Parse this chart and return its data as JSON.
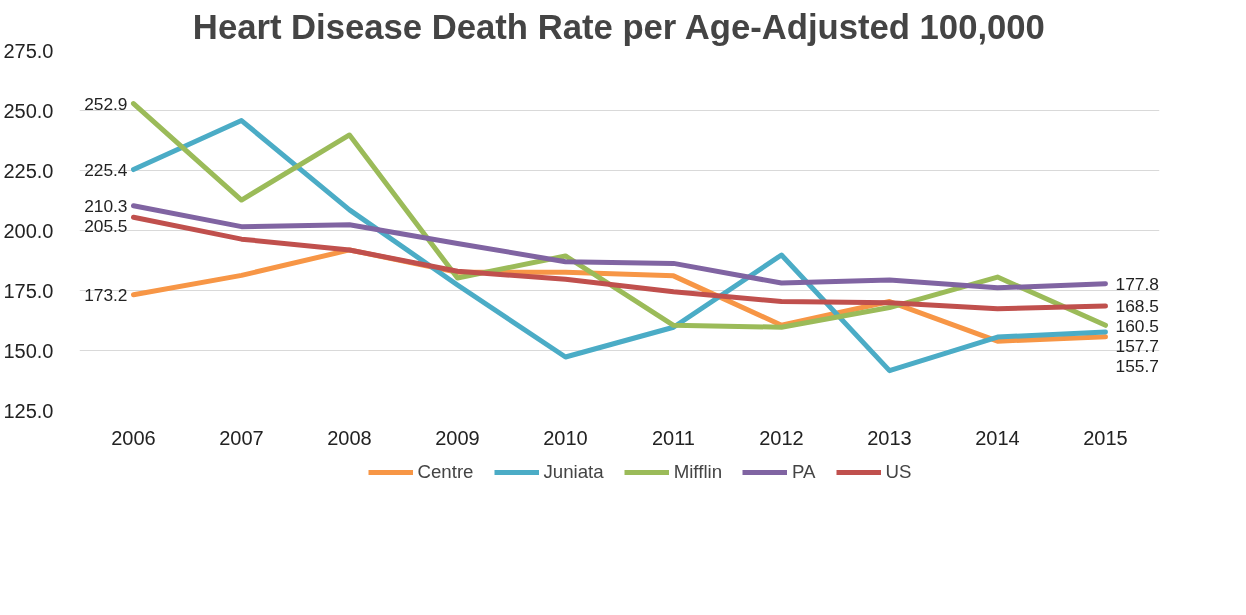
{
  "chart_data": {
    "type": "line",
    "title": "Heart Disease Death Rate per Age-Adjusted 100,000",
    "categories": [
      "2006",
      "2007",
      "2008",
      "2009",
      "2010",
      "2011",
      "2012",
      "2013",
      "2014",
      "2015"
    ],
    "series": [
      {
        "name": "Centre",
        "color": "#f79646",
        "values": [
          173.2,
          181.3,
          191.9,
          182.6,
          182.6,
          181.1,
          160.5,
          170.4,
          153.9,
          155.7
        ],
        "value_labels": [
          "173.2",
          null,
          null,
          null,
          null,
          null,
          null,
          null,
          null,
          "155.7"
        ]
      },
      {
        "name": "Juniata",
        "color": "#4bacc6",
        "values": [
          225.4,
          245.8,
          208.6,
          177.3,
          147.3,
          159.7,
          189.8,
          141.6,
          155.6,
          157.7
        ],
        "value_labels": [
          "225.4",
          null,
          null,
          null,
          null,
          null,
          null,
          null,
          null,
          "157.7"
        ]
      },
      {
        "name": "Mifflin",
        "color": "#9bbb59",
        "values": [
          252.9,
          212.7,
          239.8,
          180.2,
          189.4,
          160.5,
          159.7,
          167.9,
          180.6,
          160.5
        ],
        "value_labels": [
          "252.9",
          null,
          null,
          null,
          null,
          null,
          null,
          null,
          null,
          "160.5"
        ]
      },
      {
        "name": "PA",
        "color": "#8064a2",
        "values": [
          210.3,
          201.6,
          202.4,
          194.6,
          187.0,
          186.3,
          178.1,
          179.4,
          176.1,
          177.8
        ],
        "value_labels": [
          "210.3",
          null,
          null,
          null,
          null,
          null,
          null,
          null,
          null,
          "177.8"
        ]
      },
      {
        "name": "US",
        "color": "#c0504d",
        "values": [
          205.5,
          196.4,
          191.9,
          183.0,
          179.7,
          174.5,
          170.4,
          169.9,
          167.4,
          168.5
        ],
        "value_labels": [
          "205.5",
          null,
          null,
          null,
          null,
          null,
          null,
          null,
          null,
          "168.5"
        ]
      }
    ],
    "ylim": [
      125,
      275
    ],
    "yticks": [
      {
        "value": 125,
        "label": "125.0"
      },
      {
        "value": 150,
        "label": "150.0"
      },
      {
        "value": 175,
        "label": "175.0"
      },
      {
        "value": 200,
        "label": "200.0"
      },
      {
        "value": 225,
        "label": "225.0"
      },
      {
        "value": 250,
        "label": "250.0"
      },
      {
        "value": 275,
        "label": "275.0"
      }
    ],
    "grid": "y",
    "legend": "bottom",
    "marker": "none",
    "line_style": "solid"
  }
}
